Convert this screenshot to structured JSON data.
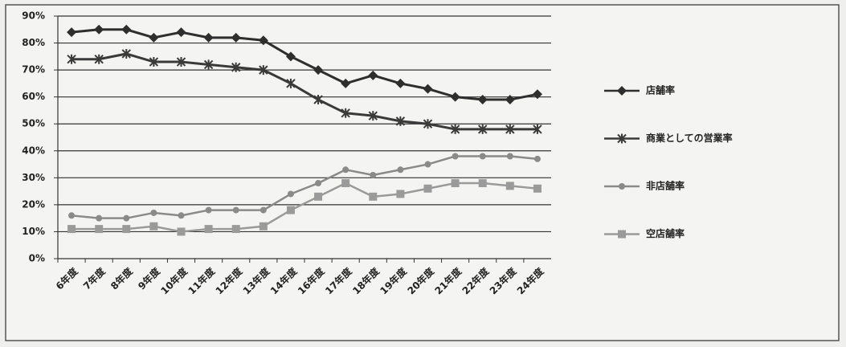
{
  "chart_data": {
    "type": "line",
    "categories": [
      "6年度",
      "7年度",
      "8年度",
      "9年度",
      "10年度",
      "11年度",
      "12年度",
      "13年度",
      "14年度",
      "16年度",
      "17年度",
      "18年度",
      "19年度",
      "20年度",
      "21年度",
      "22年度",
      "23年度",
      "24年度"
    ],
    "series": [
      {
        "name": "店舗率",
        "color": "#2e2e2e",
        "values": [
          84,
          85,
          85,
          82,
          84,
          82,
          82,
          81,
          75,
          70,
          65,
          68,
          65,
          63,
          60,
          59,
          59,
          61
        ]
      },
      {
        "name": "商業としての営業率",
        "color": "#3a3a3a",
        "values": [
          74,
          74,
          76,
          73,
          73,
          72,
          71,
          70,
          65,
          59,
          54,
          53,
          51,
          50,
          48,
          48,
          48,
          48
        ]
      },
      {
        "name": "非店舗率",
        "color": "#8a8a8a",
        "values": [
          16,
          15,
          15,
          17,
          16,
          18,
          18,
          18,
          24,
          28,
          33,
          31,
          33,
          35,
          38,
          38,
          38,
          37
        ]
      },
      {
        "name": "空店舗率",
        "color": "#9a9a9a",
        "values": [
          11,
          11,
          11,
          12,
          10,
          11,
          11,
          12,
          18,
          23,
          28,
          23,
          24,
          26,
          28,
          28,
          27,
          26
        ]
      }
    ],
    "ylim": [
      0,
      90
    ],
    "yticks": [
      {
        "value": 0,
        "label": "0%"
      },
      {
        "value": 10,
        "label": "10%"
      },
      {
        "value": 20,
        "label": "20%"
      },
      {
        "value": 30,
        "label": "30%"
      },
      {
        "value": 40,
        "label": "40%"
      },
      {
        "value": 50,
        "label": "50%"
      },
      {
        "value": 60,
        "label": "60%"
      },
      {
        "value": 70,
        "label": "70%"
      },
      {
        "value": 80,
        "label": "80%"
      },
      {
        "value": 90,
        "label": "90%"
      }
    ],
    "grid": true,
    "legend": "right"
  }
}
